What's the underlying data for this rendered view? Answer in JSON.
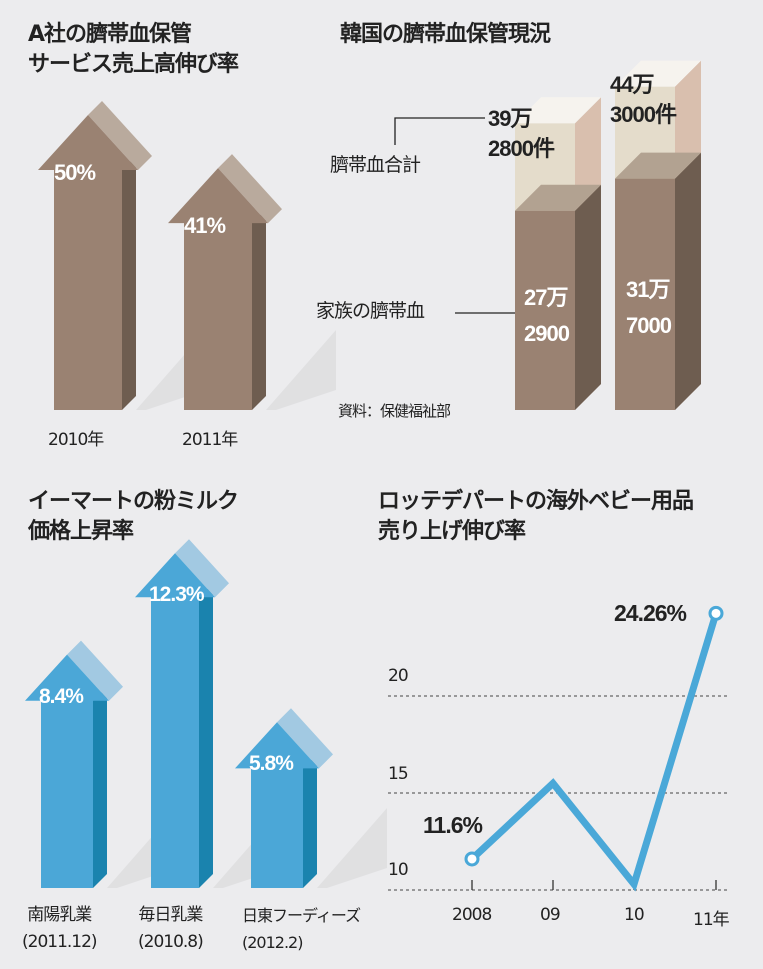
{
  "chart_data": [
    {
      "type": "bar",
      "title": "A社の臍帯血保管サービス売上高伸び率",
      "title_lines": [
        "A社の臍帯血保管",
        "サービス売上高伸び率"
      ],
      "categories": [
        "2010年",
        "2011年"
      ],
      "values": [
        50,
        41
      ],
      "data_labels": [
        "50%",
        "41%"
      ],
      "colors": {
        "front": "#9a8272",
        "side": "#6e5d50",
        "top": "#b9aa9d"
      }
    },
    {
      "type": "bar",
      "title": "韓国の臍帯血保管現況",
      "stacked": true,
      "categories": [
        "",
        ""
      ],
      "series": [
        {
          "name": "家族の臍帯血",
          "values": [
            272900,
            317000
          ],
          "data_labels": [
            "27万\n2900",
            "31万\n7000"
          ]
        },
        {
          "name": "臍帯血合計",
          "values": [
            392800,
            443000
          ],
          "data_labels": [
            "39万\n2800件",
            "44万\n3000件"
          ]
        }
      ],
      "source": "資料：保健福祉部",
      "colors": {
        "family": "#9a8272",
        "family_side": "#6e5d50",
        "total": "#e4dccb",
        "total_side": "#d9bfae"
      }
    },
    {
      "type": "bar",
      "title": "イーマートの粉ミルク価格上昇率",
      "title_lines": [
        "イーマートの粉ミルク",
        "価格上昇率"
      ],
      "categories": [
        "南陽乳業\n(2011.12)",
        "毎日乳業\n(2010.8)",
        "日東フーディーズ\n(2012.2)"
      ],
      "values": [
        8.4,
        12.3,
        5.8
      ],
      "data_labels": [
        "8.4%",
        "12.3%",
        "5.8%"
      ],
      "colors": {
        "front": "#4ba7d7",
        "side": "#1a83ae",
        "top": "#a2c9e2"
      }
    },
    {
      "type": "line",
      "title": "ロッテデパートの海外ベビー用品売り上げ伸び率",
      "title_lines": [
        "ロッテデパートの海外ベビー用品",
        "売り上げ伸び率"
      ],
      "x": [
        "2008",
        "09",
        "10",
        "11年"
      ],
      "values": [
        11.6,
        15.5,
        10.3,
        24.26
      ],
      "data_labels": [
        "11.6%",
        "",
        "",
        "24.26%"
      ],
      "yticks": [
        10,
        15,
        20
      ],
      "ylim": [
        10,
        25
      ],
      "grid": true,
      "color": "#4aa8d8"
    }
  ]
}
